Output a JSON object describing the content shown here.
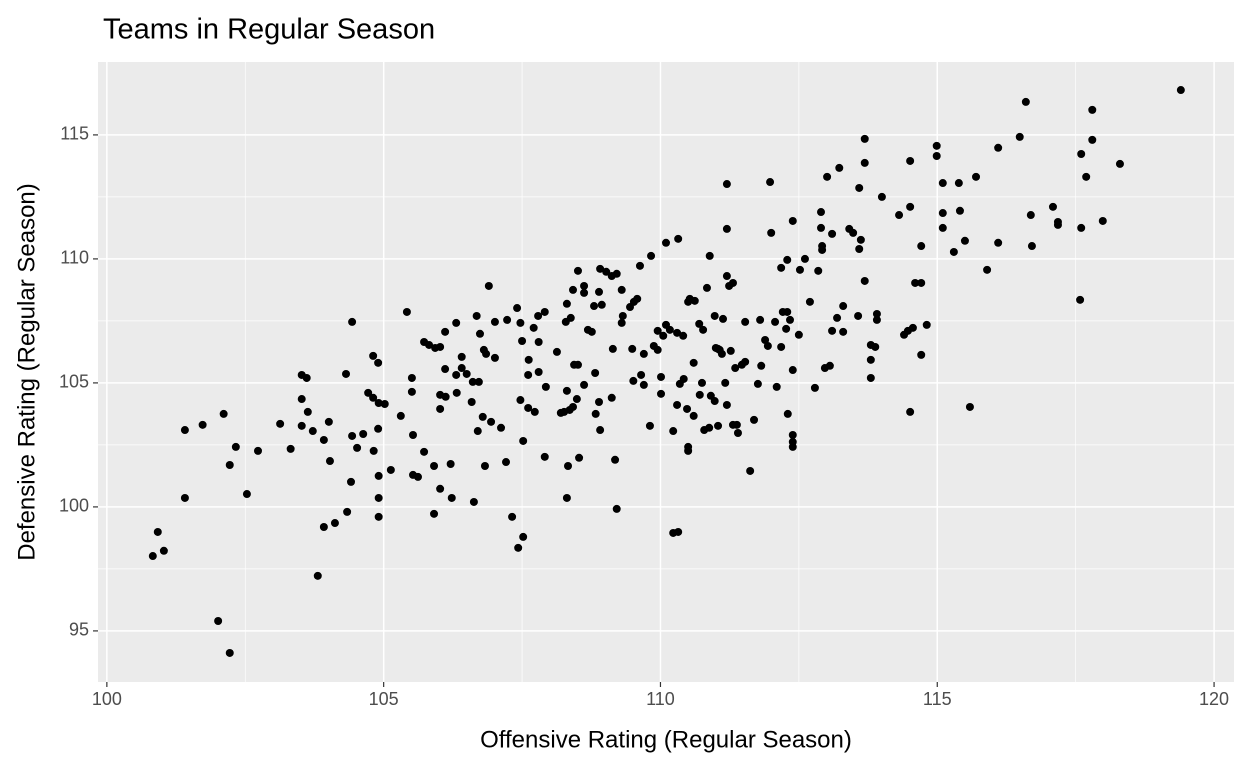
{
  "chart_data": {
    "type": "scatter",
    "title": "Teams in Regular Season",
    "x_label": "Offensive Rating (Regular Season)",
    "y_label": "Defensive Rating (Regular Season)",
    "xlim": [
      99.84,
      120.36
    ],
    "ylim": [
      92.94,
      117.94
    ],
    "xticks": [
      100,
      105,
      110,
      115,
      120
    ],
    "yticks": [
      95,
      100,
      105,
      110,
      115
    ],
    "grid": true,
    "color": "#000000",
    "x": [
      100.83,
      100.92,
      101.03,
      101.41,
      101.41,
      101.73,
      102.01,
      102.11,
      102.22,
      102.22,
      102.33,
      102.53,
      102.73,
      103.13,
      103.32,
      103.52,
      103.52,
      103.52,
      103.61,
      103.63,
      103.72,
      103.81,
      103.92,
      103.92,
      104.01,
      104.03,
      104.12,
      104.32,
      104.34,
      104.41,
      104.43,
      104.43,
      104.52,
      104.63,
      104.72,
      104.81,
      104.81,
      104.82,
      104.9,
      104.9,
      104.91,
      104.91,
      104.91,
      104.91,
      105.02,
      105.13,
      105.31,
      105.42,
      105.51,
      105.51,
      105.53,
      105.53,
      105.62,
      105.73,
      105.73,
      105.82,
      105.91,
      105.91,
      105.93,
      106.02,
      106.02,
      106.02,
      106.02,
      106.11,
      106.11,
      106.12,
      106.21,
      106.23,
      106.31,
      106.31,
      106.32,
      106.41,
      106.41,
      106.5,
      106.59,
      106.61,
      106.63,
      106.68,
      106.7,
      106.72,
      106.74,
      106.79,
      106.81,
      106.83,
      106.85,
      106.9,
      106.94,
      107.01,
      107.01,
      107.12,
      107.21,
      107.23,
      107.32,
      107.41,
      107.43,
      107.47,
      107.47,
      107.5,
      107.52,
      107.52,
      107.61,
      107.61,
      107.62,
      107.71,
      107.73,
      107.79,
      107.8,
      107.8,
      107.91,
      107.91,
      107.93,
      108.13,
      108.2,
      108.26,
      108.29,
      108.31,
      108.31,
      108.31,
      108.33,
      108.36,
      108.38,
      108.42,
      108.42,
      108.44,
      108.49,
      108.51,
      108.51,
      108.53,
      108.62,
      108.62,
      108.62,
      108.69,
      108.76,
      108.8,
      108.82,
      108.83,
      108.89,
      108.89,
      108.91,
      108.91,
      108.94,
      109.02,
      109.12,
      109.12,
      109.14,
      109.18,
      109.21,
      109.21,
      109.3,
      109.3,
      109.32,
      109.45,
      109.49,
      109.51,
      109.52,
      109.58,
      109.63,
      109.65,
      109.7,
      109.7,
      109.81,
      109.83,
      109.88,
      109.95,
      109.95,
      110.01,
      110.01,
      110.05,
      110.1,
      110.1,
      110.17,
      110.23,
      110.23,
      110.32,
      110.32,
      110.3,
      110.3,
      110.35,
      110.41,
      110.42,
      110.48,
      110.5,
      110.5,
      110.5,
      110.53,
      110.6,
      110.6,
      110.62,
      110.7,
      110.71,
      110.75,
      110.77,
      110.79,
      110.84,
      110.88,
      110.89,
      110.91,
      110.98,
      110.98,
      111.0,
      111.04,
      111.04,
      111.07,
      111.11,
      111.13,
      111.17,
      111.2,
      111.2,
      111.2,
      111.2,
      111.24,
      111.27,
      111.31,
      111.31,
      111.35,
      111.38,
      111.4,
      111.47,
      111.53,
      111.53,
      111.62,
      111.69,
      111.76,
      111.8,
      111.82,
      111.89,
      111.94,
      111.98,
      112.0,
      112.07,
      112.1,
      112.18,
      112.18,
      112.21,
      112.27,
      112.29,
      112.29,
      112.3,
      112.34,
      112.39,
      112.39,
      112.39,
      112.39,
      112.39,
      112.5,
      112.52,
      112.61,
      112.7,
      112.79,
      112.85,
      112.9,
      112.9,
      112.92,
      112.92,
      112.97,
      113.01,
      113.06,
      113.1,
      113.1,
      113.19,
      113.23,
      113.3,
      113.3,
      113.41,
      113.48,
      113.57,
      113.59,
      113.59,
      113.62,
      113.69,
      113.69,
      113.69,
      113.8,
      113.8,
      113.8,
      113.88,
      113.91,
      113.91,
      114.0,
      114.31,
      114.4,
      114.47,
      114.51,
      114.51,
      114.51,
      114.56,
      114.6,
      114.71,
      114.71,
      114.71,
      114.81,
      114.99,
      114.99,
      115.1,
      115.1,
      115.1,
      115.3,
      115.39,
      115.41,
      115.5,
      115.59,
      115.7,
      115.9,
      116.1,
      116.1,
      116.49,
      116.6,
      116.69,
      116.71,
      117.09,
      117.18,
      117.18,
      117.58,
      117.6,
      117.6,
      117.69,
      117.8,
      117.8,
      117.99,
      118.3,
      119.4
    ],
    "y": [
      98.02,
      98.99,
      98.23,
      103.1,
      100.36,
      103.31,
      95.4,
      103.75,
      101.69,
      94.11,
      102.42,
      100.52,
      102.26,
      103.35,
      102.34,
      105.32,
      104.35,
      103.27,
      105.2,
      103.83,
      103.06,
      97.22,
      99.19,
      102.7,
      103.43,
      101.85,
      99.35,
      105.36,
      99.8,
      101.01,
      107.46,
      102.86,
      102.38,
      102.94,
      104.6,
      106.09,
      104.4,
      102.26,
      105.81,
      103.15,
      101.25,
      100.36,
      99.6,
      104.19,
      104.15,
      101.49,
      103.67,
      107.86,
      105.2,
      104.64,
      102.9,
      101.29,
      101.21,
      102.22,
      106.65,
      106.53,
      99.72,
      101.65,
      106.41,
      106.45,
      103.95,
      104.52,
      100.73,
      107.06,
      105.56,
      104.44,
      101.73,
      100.36,
      107.42,
      105.32,
      104.6,
      106.05,
      105.6,
      105.36,
      104.23,
      105.04,
      100.2,
      107.7,
      103.06,
      105.04,
      106.98,
      103.63,
      106.33,
      101.65,
      106.17,
      108.91,
      103.43,
      107.46,
      106.01,
      103.19,
      101.81,
      107.54,
      99.6,
      108.02,
      98.35,
      107.42,
      104.31,
      106.69,
      98.79,
      102.66,
      105.32,
      103.99,
      105.93,
      107.22,
      103.83,
      107.7,
      105.44,
      106.65,
      107.86,
      102.02,
      104.84,
      106.25,
      103.79,
      103.83,
      107.46,
      108.19,
      100.36,
      104.68,
      101.65,
      103.91,
      107.62,
      108.75,
      104.03,
      105.73,
      104.35,
      109.52,
      105.73,
      101.98,
      108.91,
      108.63,
      104.92,
      107.14,
      107.06,
      108.1,
      105.4,
      103.75,
      108.67,
      104.23,
      103.1,
      109.6,
      108.15,
      109.48,
      109.31,
      104.4,
      106.37,
      101.9,
      99.92,
      109.4,
      107.42,
      108.75,
      107.7,
      108.06,
      106.37,
      105.08,
      108.27,
      108.39,
      109.72,
      105.32,
      104.92,
      106.17,
      103.27,
      110.12,
      106.49,
      107.1,
      106.33,
      104.56,
      105.24,
      106.9,
      110.65,
      107.34,
      107.14,
      98.95,
      103.06,
      98.99,
      110.81,
      107.02,
      104.11,
      104.96,
      106.9,
      105.16,
      103.95,
      108.27,
      102.42,
      102.26,
      108.39,
      105.81,
      103.67,
      108.31,
      107.38,
      104.52,
      105.0,
      107.14,
      103.1,
      108.83,
      103.19,
      110.12,
      104.48,
      107.7,
      104.27,
      106.41,
      106.37,
      103.27,
      106.33,
      106.17,
      107.58,
      105.0,
      109.31,
      113.02,
      111.21,
      104.11,
      108.91,
      106.29,
      109.03,
      103.31,
      105.6,
      103.31,
      102.98,
      105.73,
      107.46,
      105.85,
      101.45,
      103.51,
      104.96,
      107.54,
      105.69,
      106.73,
      106.49,
      113.1,
      111.05,
      107.46,
      104.84,
      106.45,
      109.64,
      107.86,
      107.18,
      109.96,
      107.86,
      103.75,
      107.54,
      111.53,
      105.52,
      102.9,
      102.62,
      102.42,
      106.94,
      109.56,
      110.0,
      108.27,
      104.8,
      109.52,
      111.89,
      111.25,
      110.52,
      110.36,
      105.6,
      113.31,
      105.69,
      107.1,
      111.01,
      107.62,
      113.67,
      107.06,
      108.1,
      111.21,
      111.05,
      107.7,
      112.86,
      110.4,
      110.77,
      109.11,
      114.84,
      113.87,
      105.2,
      105.93,
      106.53,
      106.45,
      107.54,
      107.78,
      112.5,
      111.77,
      106.94,
      107.1,
      103.83,
      113.95,
      112.1,
      107.22,
      109.03,
      109.03,
      110.52,
      106.13,
      107.34,
      114.56,
      114.15,
      113.06,
      111.85,
      111.25,
      110.28,
      113.06,
      111.94,
      110.73,
      104.03,
      113.31,
      109.56,
      114.48,
      110.65,
      114.92,
      116.33,
      111.77,
      110.52,
      112.1,
      111.49,
      111.37,
      108.35,
      111.25,
      114.23,
      113.31,
      114.8,
      116.01,
      111.53,
      113.83,
      116.81
    ]
  }
}
